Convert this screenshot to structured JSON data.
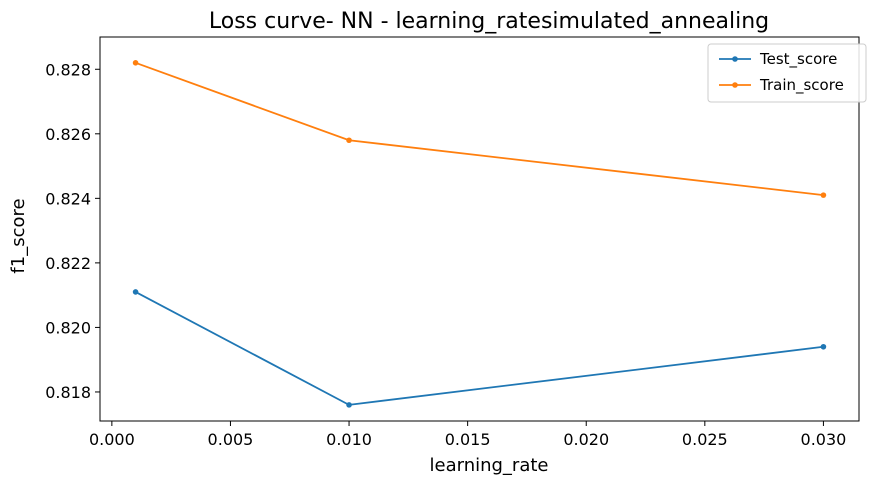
{
  "chart_data": {
    "type": "line",
    "title": "Loss curve- NN - learning_ratesimulated_annealing",
    "xlabel": "learning_rate",
    "ylabel": "f1_score",
    "xlim": [
      -0.0005,
      0.0315
    ],
    "ylim": [
      0.8171,
      0.829
    ],
    "xticks": [
      0.0,
      0.005,
      0.01,
      0.015,
      0.02,
      0.025,
      0.03
    ],
    "xtick_labels": [
      "0.000",
      "0.005",
      "0.010",
      "0.015",
      "0.020",
      "0.025",
      "0.030"
    ],
    "yticks": [
      0.818,
      0.82,
      0.822,
      0.824,
      0.826,
      0.828
    ],
    "ytick_labels": [
      "0.818",
      "0.820",
      "0.822",
      "0.824",
      "0.826",
      "0.828"
    ],
    "grid": false,
    "legend_position": "top-right",
    "x": [
      0.001,
      0.01,
      0.03
    ],
    "series": [
      {
        "name": "Test_score",
        "color": "#1f77b4",
        "values": [
          0.8211,
          0.8176,
          0.8194
        ]
      },
      {
        "name": "Train_score",
        "color": "#ff7f0e",
        "values": [
          0.8282,
          0.8258,
          0.8241
        ]
      }
    ]
  }
}
